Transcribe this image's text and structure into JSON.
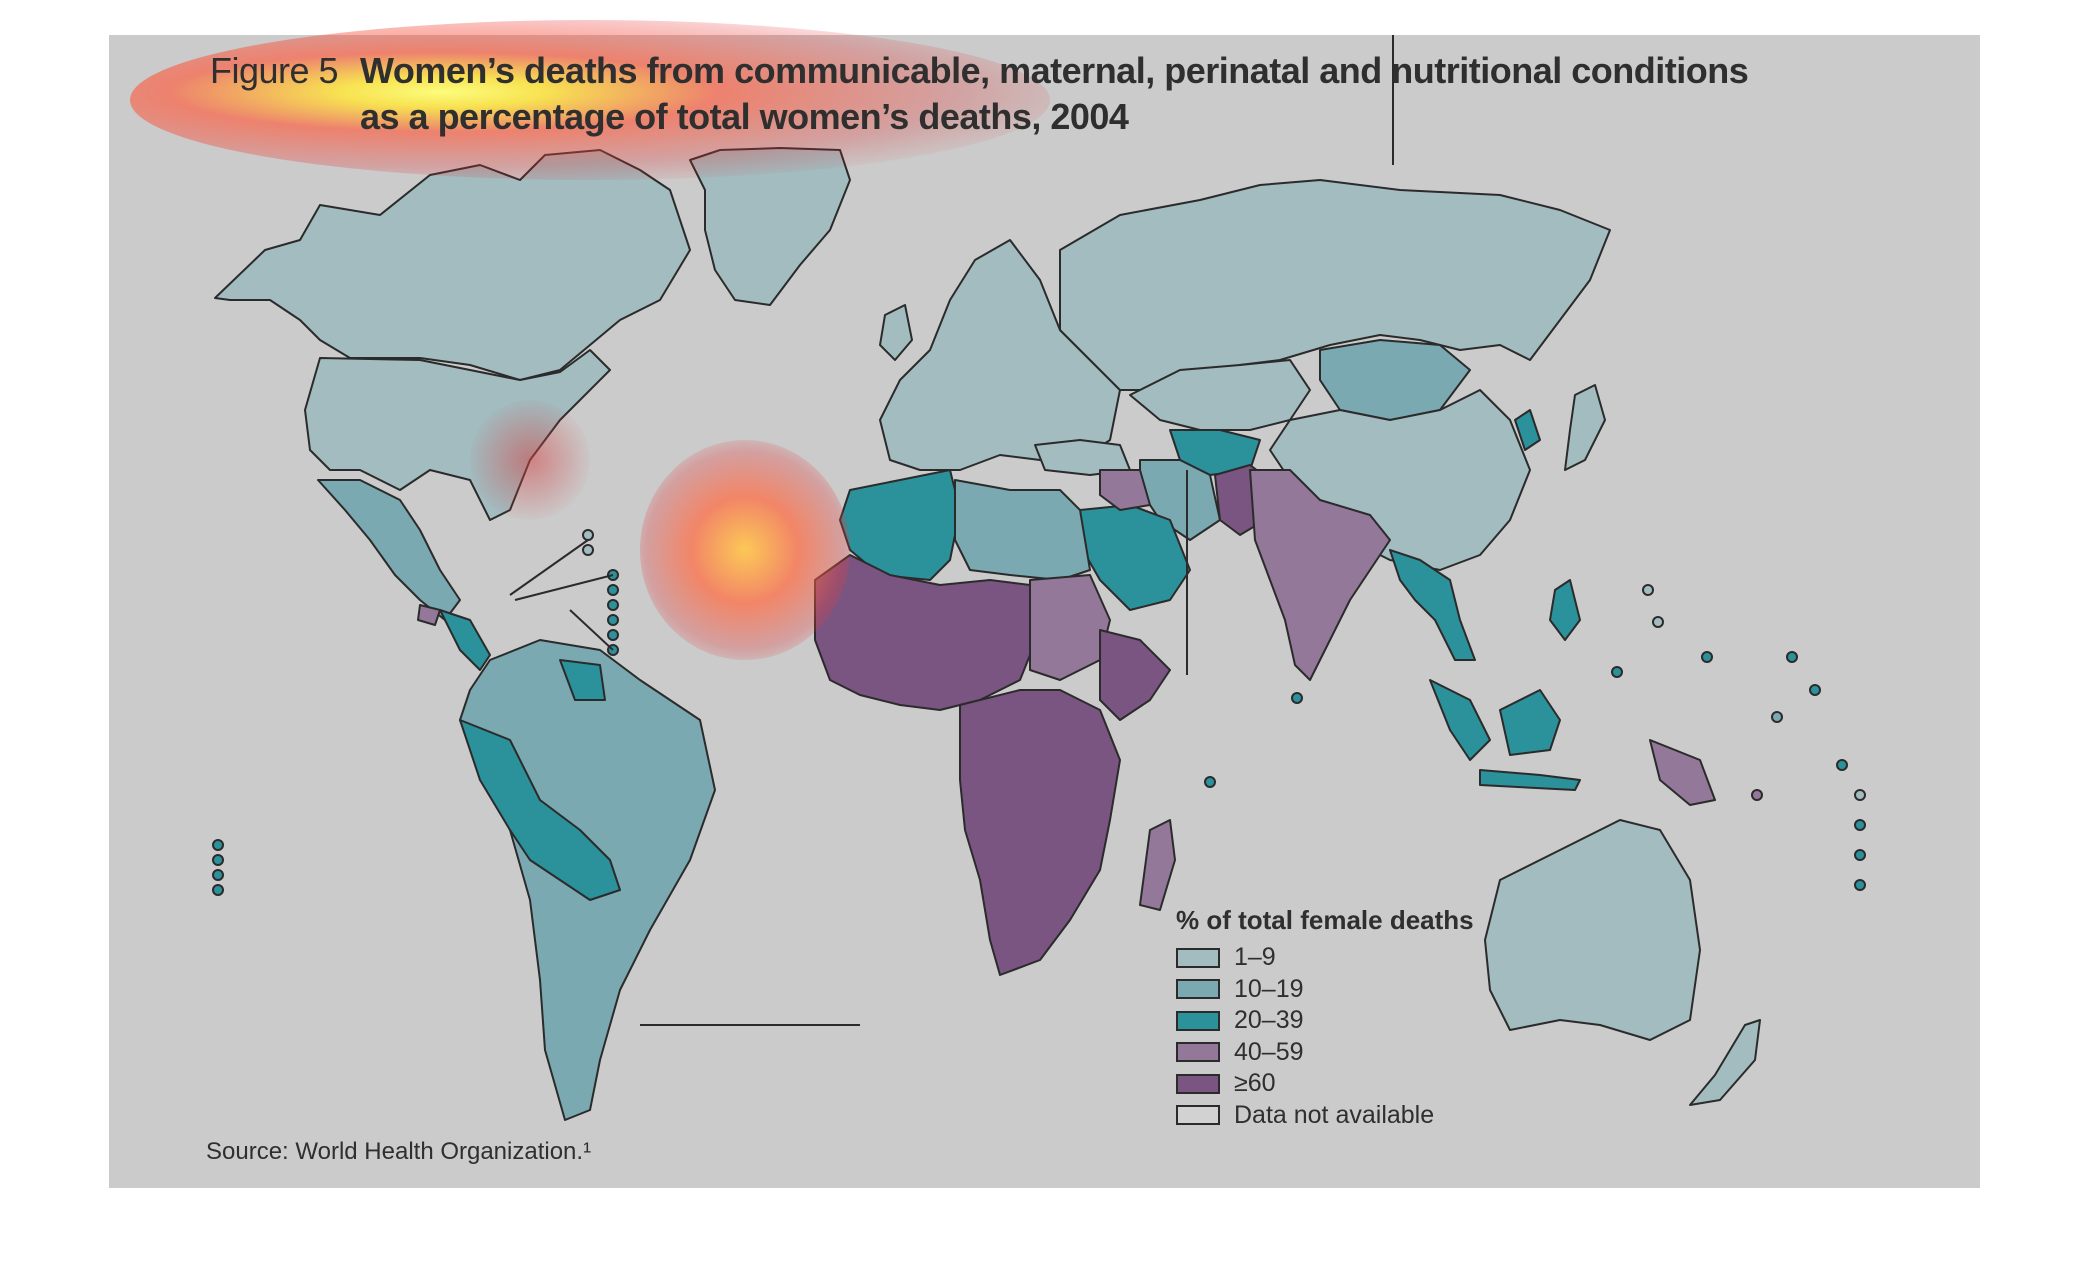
{
  "figure": {
    "label": "Figure 5",
    "title_line_1": "Women’s deaths from communicable, maternal, perinatal and nutritional conditions",
    "title_line_2": "as a percentage of total women’s deaths, 2004"
  },
  "legend": {
    "title": "% of total female deaths",
    "items": [
      {
        "label": "1–9",
        "color": "#a2bcc0"
      },
      {
        "label": "10–19",
        "color": "#7aa9b1"
      },
      {
        "label": "20–39",
        "color": "#2b919b"
      },
      {
        "label": "40–59",
        "color": "#94789a"
      },
      {
        "label": "≥60",
        "color": "#7a5582"
      },
      {
        "label": "Data not available",
        "color": "#d2d2d2"
      }
    ]
  },
  "source": "Source: World Health Organization.¹",
  "colors": {
    "background": "#cbcbcb",
    "border": "#2b2b2b"
  }
}
